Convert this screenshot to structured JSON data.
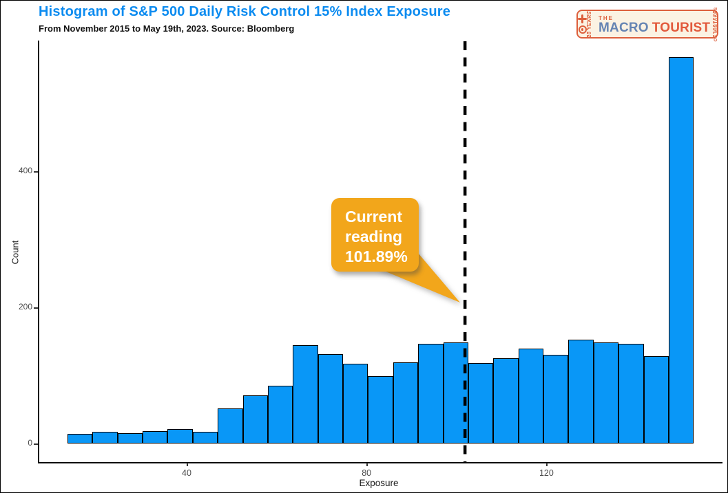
{
  "header": {
    "title": "Histogram of S&P 500 Daily Risk Control 15% Index Exposure",
    "subtitle": "From November 2015 to May 19th, 2023. Source: Bloomberg",
    "title_color": "#0b8bf0"
  },
  "logo": {
    "the": "THE",
    "macro": "MACRO",
    "tourist": "TOURIST",
    "left_vertical": "20 YEARS",
    "right_vertical": "OF MISTAKES",
    "border_color": "#DD5F3C",
    "background_color": "#FBF2E3",
    "macro_color": "#6584B3",
    "accent_color": "#E2593B"
  },
  "callout": {
    "lines": [
      "Current",
      "reading",
      "101.89%"
    ],
    "background_color": "#F2A61B",
    "text_color": "#FFFFFF"
  },
  "chart_data": {
    "type": "bar",
    "subtype": "histogram",
    "title": "Histogram of S&P 500 Daily Risk Control 15% Index Exposure",
    "subtitle": "From November 2015 to May 19th, 2023. Source: Bloomberg",
    "xlabel": "Exposure",
    "ylabel": "Count",
    "bar_color": "#0997F7",
    "bar_border_color": "#000000",
    "bin_start": 13.5,
    "bin_width": 5.57,
    "bin_centers": [
      16.3,
      21.9,
      27.4,
      33.0,
      38.6,
      44.1,
      49.7,
      55.3,
      60.8,
      66.4,
      72.0,
      77.5,
      83.1,
      88.7,
      94.2,
      99.8,
      105.4,
      110.9,
      116.5,
      122.1,
      127.6,
      133.2,
      138.8,
      144.3,
      149.9
    ],
    "counts": [
      14,
      17,
      15,
      18,
      22,
      17,
      52,
      71,
      85,
      145,
      132,
      117,
      99,
      120,
      147,
      149,
      118,
      126,
      140,
      131,
      153,
      149,
      147,
      129,
      568
    ],
    "x_ticks": [
      40,
      80,
      120
    ],
    "y_ticks": [
      0,
      200,
      400
    ],
    "xlim": [
      7,
      158
    ],
    "ylim": [
      0,
      590
    ],
    "grid": false,
    "legend": false,
    "vline": {
      "x": 101.89,
      "style": "dashed",
      "color": "#000000",
      "label": "Current reading 101.89%"
    }
  }
}
